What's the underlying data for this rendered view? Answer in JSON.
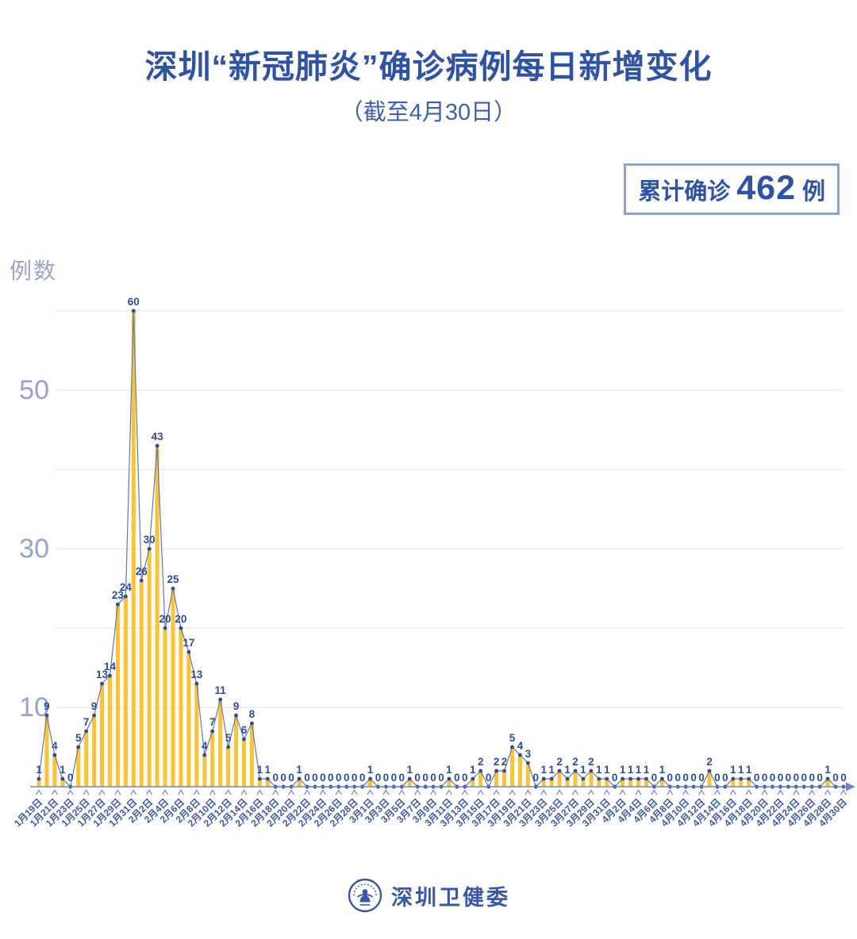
{
  "header": {
    "title": "深圳“新冠肺炎”确诊病例每日新增变化",
    "subtitle": "（截至4月30日）"
  },
  "badge": {
    "label": "累计确诊",
    "value": "462",
    "unit": "例"
  },
  "chart_data": {
    "type": "bar",
    "title": "深圳“新冠肺炎”确诊病例每日新增变化",
    "subtitle": "（截至4月30日）",
    "ylabel": "例数",
    "xlabel": "",
    "ylim": [
      0,
      63
    ],
    "yticks_labeled": [
      10,
      30,
      50
    ],
    "gridlines": [
      10,
      20,
      30,
      40,
      50,
      60
    ],
    "x_label_every": 2,
    "legend": "none",
    "categories": [
      "1月19日",
      "1月20日",
      "1月21日",
      "1月22日",
      "1月23日",
      "1月24日",
      "1月25日",
      "1月26日",
      "1月27日",
      "1月28日",
      "1月29日",
      "1月30日",
      "1月31日",
      "2月1日",
      "2月2日",
      "2月3日",
      "2月4日",
      "2月5日",
      "2月6日",
      "2月7日",
      "2月8日",
      "2月9日",
      "2月10日",
      "2月11日",
      "2月12日",
      "2月13日",
      "2月14日",
      "2月15日",
      "2月16日",
      "2月17日",
      "2月18日",
      "2月19日",
      "2月20日",
      "2月21日",
      "2月22日",
      "2月23日",
      "2月24日",
      "2月25日",
      "2月26日",
      "2月27日",
      "2月28日",
      "2月29日",
      "3月1日",
      "3月2日",
      "3月3日",
      "3月4日",
      "3月5日",
      "3月6日",
      "3月7日",
      "3月8日",
      "3月9日",
      "3月10日",
      "3月11日",
      "3月12日",
      "3月13日",
      "3月14日",
      "3月15日",
      "3月16日",
      "3月17日",
      "3月18日",
      "3月19日",
      "3月20日",
      "3月21日",
      "3月22日",
      "3月23日",
      "3月24日",
      "3月25日",
      "3月26日",
      "3月27日",
      "3月28日",
      "3月29日",
      "3月30日",
      "3月31日",
      "4月1日",
      "4月2日",
      "4月3日",
      "4月4日",
      "4月5日",
      "4月6日",
      "4月7日",
      "4月8日",
      "4月9日",
      "4月10日",
      "4月11日",
      "4月12日",
      "4月13日",
      "4月14日",
      "4月15日",
      "4月16日",
      "4月17日",
      "4月18日",
      "4月19日",
      "4月20日",
      "4月21日",
      "4月22日",
      "4月23日",
      "4月24日",
      "4月25日",
      "4月26日",
      "4月27日",
      "4月28日",
      "4月29日",
      "4月30日"
    ],
    "values": [
      1,
      9,
      4,
      1,
      0,
      5,
      7,
      9,
      13,
      14,
      23,
      24,
      60,
      26,
      30,
      43,
      20,
      25,
      20,
      17,
      13,
      4,
      7,
      11,
      5,
      9,
      6,
      8,
      1,
      1,
      0,
      0,
      0,
      1,
      0,
      0,
      0,
      0,
      0,
      0,
      0,
      0,
      1,
      0,
      0,
      0,
      0,
      1,
      0,
      0,
      0,
      0,
      1,
      0,
      0,
      1,
      2,
      0,
      2,
      2,
      5,
      4,
      3,
      0,
      1,
      1,
      2,
      1,
      2,
      1,
      2,
      1,
      1,
      0,
      1,
      1,
      1,
      1,
      0,
      1,
      0,
      0,
      0,
      0,
      0,
      2,
      0,
      0,
      1,
      1,
      1,
      0,
      0,
      0,
      0,
      0,
      0,
      0,
      0,
      0,
      1,
      0,
      0
    ],
    "total": 462,
    "colors": {
      "bar": "#fdc430",
      "line": "#5d78bc",
      "dot": "#2b4c9f",
      "value_label": "#2b4c9f",
      "grid": "#e6e7ee",
      "axis": "#6f85c2",
      "tick_caret": "#7c90c6",
      "ytick_label": "#97a2cd",
      "xtick_label": "#4159a9"
    }
  },
  "footer": {
    "org": "深圳卫健委"
  }
}
